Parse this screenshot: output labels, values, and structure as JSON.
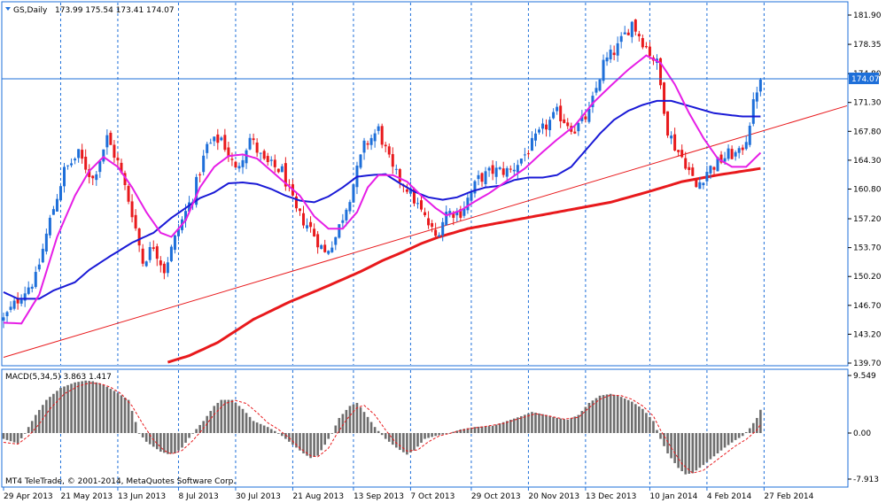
{
  "window": {
    "symbol_label": "GS,Daily",
    "ohlc_label": "173.99 175.54 173.41 174.07",
    "macd_label": "MACD(5,34,5) 3.863 1.417",
    "copyright": "MT4 TeleTrade, © 2001-2014, MetaQuotes Software Corp."
  },
  "colors": {
    "frame": "#1e6fd9",
    "bull_candle": "#1e6fd9",
    "bear_candle": "#e8191c",
    "ma_fast": "#e61ee6",
    "ma_mid": "#1a1ad6",
    "ma_slow": "#e8191c",
    "trendline": "#e8191c",
    "macd_hist": "#6e6e6e",
    "macd_signal": "#e8191c",
    "price_tag_bg": "#1e6fd9",
    "price_tag_text": "#ffffff"
  },
  "chart_data": [
    {
      "type": "candlestick",
      "title": "GS,Daily",
      "y_ticks": [
        "181.90",
        "178.35",
        "174.80",
        "171.30",
        "167.80",
        "164.30",
        "160.80",
        "157.20",
        "153.70",
        "150.20",
        "146.70",
        "143.20",
        "139.70"
      ],
      "ylim": [
        139.7,
        181.9
      ],
      "current_price": "174.07",
      "x_date_labels": [
        "29 Apr 2013",
        "21 May 2013",
        "13 Jun 2013",
        "8 Jul 2013",
        "30 Jul 2013",
        "21 Aug 2013",
        "13 Sep 2013",
        "7 Oct 2013",
        "29 Oct 2013",
        "20 Nov 2013",
        "13 Dec 2013",
        "10 Jan 2014",
        "4 Feb 2014",
        "27 Feb 2014"
      ],
      "close_anchors": [
        [
          0,
          145
        ],
        [
          5,
          148
        ],
        [
          9,
          150
        ],
        [
          13,
          157
        ],
        [
          17,
          163
        ],
        [
          21,
          165
        ],
        [
          25,
          162
        ],
        [
          29,
          167
        ],
        [
          32,
          164
        ],
        [
          36,
          158
        ],
        [
          39,
          152
        ],
        [
          42,
          154
        ],
        [
          45,
          151
        ],
        [
          49,
          156
        ],
        [
          53,
          160
        ],
        [
          57,
          166
        ],
        [
          61,
          167
        ],
        [
          65,
          163
        ],
        [
          69,
          167
        ],
        [
          73,
          164
        ],
        [
          78,
          163
        ],
        [
          82,
          158
        ],
        [
          86,
          156
        ],
        [
          90,
          153
        ],
        [
          93,
          155
        ],
        [
          97,
          160
        ],
        [
          101,
          166
        ],
        [
          105,
          168
        ],
        [
          109,
          163
        ],
        [
          113,
          161
        ],
        [
          117,
          158
        ],
        [
          121,
          155
        ],
        [
          124,
          158
        ],
        [
          128,
          158
        ],
        [
          133,
          162
        ],
        [
          137,
          163
        ],
        [
          142,
          163
        ],
        [
          146,
          165
        ],
        [
          151,
          168
        ],
        [
          155,
          170
        ],
        [
          160,
          168
        ],
        [
          164,
          170
        ],
        [
          168,
          176
        ],
        [
          172,
          178
        ],
        [
          176,
          181
        ],
        [
          180,
          178
        ],
        [
          183,
          176
        ],
        [
          186,
          168
        ],
        [
          188,
          166
        ],
        [
          191,
          164
        ],
        [
          194,
          161
        ],
        [
          197,
          163
        ],
        [
          200,
          164
        ],
        [
          203,
          165
        ],
        [
          206,
          165
        ],
        [
          208,
          167
        ],
        [
          210,
          171
        ],
        [
          212,
          175
        ]
      ],
      "ma_fast_anchors": [
        [
          0,
          144.6
        ],
        [
          5,
          144.5
        ],
        [
          10,
          148
        ],
        [
          15,
          155
        ],
        [
          20,
          160
        ],
        [
          24,
          163
        ],
        [
          28,
          164.7
        ],
        [
          32,
          163.5
        ],
        [
          36,
          161
        ],
        [
          40,
          158
        ],
        [
          44,
          155.5
        ],
        [
          47,
          155
        ],
        [
          51,
          157
        ],
        [
          55,
          161
        ],
        [
          59,
          163.5
        ],
        [
          63,
          164.8
        ],
        [
          67,
          165
        ],
        [
          71,
          164.5
        ],
        [
          75,
          163
        ],
        [
          79,
          161.5
        ],
        [
          83,
          160
        ],
        [
          87,
          157.5
        ],
        [
          91,
          156
        ],
        [
          95,
          156
        ],
        [
          99,
          158
        ],
        [
          102,
          161
        ],
        [
          105,
          162.5
        ],
        [
          109,
          162.5
        ],
        [
          113,
          161.7
        ],
        [
          117,
          160
        ],
        [
          121,
          158.5
        ],
        [
          124,
          157.6
        ],
        [
          128,
          158.2
        ],
        [
          132,
          159.3
        ],
        [
          136,
          160.3
        ],
        [
          141,
          161.8
        ],
        [
          146,
          163.3
        ],
        [
          151,
          165.3
        ],
        [
          155,
          166.8
        ],
        [
          160,
          168.5
        ],
        [
          165,
          171.2
        ],
        [
          170,
          173.3
        ],
        [
          175,
          175.3
        ],
        [
          180,
          177
        ],
        [
          184,
          176.1
        ],
        [
          188,
          173.5
        ],
        [
          192,
          170
        ],
        [
          196,
          167
        ],
        [
          200,
          164.5
        ],
        [
          204,
          163.5
        ],
        [
          208,
          163.5
        ],
        [
          212,
          165.2
        ]
      ],
      "ma_mid_anchors": [
        [
          0,
          148.3
        ],
        [
          4,
          147.5
        ],
        [
          10,
          147.5
        ],
        [
          14,
          148.5
        ],
        [
          20,
          149.5
        ],
        [
          24,
          151
        ],
        [
          30,
          152.7
        ],
        [
          36,
          154.3
        ],
        [
          42,
          155.5
        ],
        [
          47,
          157.3
        ],
        [
          51,
          158.5
        ],
        [
          55,
          159.7
        ],
        [
          59,
          160.4
        ],
        [
          63,
          161.5
        ],
        [
          67,
          161.6
        ],
        [
          71,
          161.4
        ],
        [
          75,
          160.8
        ],
        [
          79,
          160
        ],
        [
          83,
          159.4
        ],
        [
          87,
          159.2
        ],
        [
          91,
          159.9
        ],
        [
          95,
          161
        ],
        [
          99,
          162.3
        ],
        [
          103,
          162.5
        ],
        [
          107,
          162.6
        ],
        [
          111,
          161.5
        ],
        [
          115,
          160.5
        ],
        [
          119,
          159.8
        ],
        [
          123,
          159.5
        ],
        [
          127,
          159.8
        ],
        [
          131,
          160.5
        ],
        [
          135,
          161
        ],
        [
          139,
          161.2
        ],
        [
          143,
          161.9
        ],
        [
          147,
          162.2
        ],
        [
          151,
          162.2
        ],
        [
          155,
          162.5
        ],
        [
          159,
          163.5
        ],
        [
          163,
          165.5
        ],
        [
          167,
          167.5
        ],
        [
          171,
          169.2
        ],
        [
          175,
          170.3
        ],
        [
          179,
          171
        ],
        [
          183,
          171.5
        ],
        [
          187,
          171.5
        ],
        [
          191,
          171
        ],
        [
          195,
          170.5
        ],
        [
          199,
          170
        ],
        [
          203,
          169.8
        ],
        [
          207,
          169.6
        ],
        [
          212,
          169.6
        ]
      ],
      "ma_slow_anchors": [
        [
          46,
          139.8
        ],
        [
          52,
          140.6
        ],
        [
          60,
          142.2
        ],
        [
          70,
          145
        ],
        [
          80,
          147.1
        ],
        [
          90,
          148.9
        ],
        [
          100,
          150.8
        ],
        [
          106,
          152.1
        ],
        [
          112,
          153.2
        ],
        [
          117,
          154.2
        ],
        [
          122,
          155
        ],
        [
          130,
          156
        ],
        [
          140,
          156.8
        ],
        [
          150,
          157.6
        ],
        [
          160,
          158.4
        ],
        [
          170,
          159.2
        ],
        [
          180,
          160.4
        ],
        [
          190,
          161.7
        ],
        [
          200,
          162.5
        ],
        [
          212,
          163.3
        ]
      ],
      "trendline": {
        "from": [
          0,
          140.4
        ],
        "to": [
          237,
          171
        ]
      }
    },
    {
      "type": "bar",
      "title": "MACD(5,34,5)",
      "y_ticks": [
        "9.549",
        "0.00",
        "-7.913"
      ],
      "ylim": [
        -7.913,
        9.549
      ],
      "hist_anchors": [
        [
          0,
          -1
        ],
        [
          4,
          -1.8
        ],
        [
          6,
          0
        ],
        [
          9,
          3
        ],
        [
          12,
          5.5
        ],
        [
          16,
          7.5
        ],
        [
          20,
          8.4
        ],
        [
          23,
          8.7
        ],
        [
          25,
          8.6
        ],
        [
          28,
          8
        ],
        [
          31,
          7
        ],
        [
          35,
          5.5
        ],
        [
          38,
          0
        ],
        [
          40,
          -1.5
        ],
        [
          44,
          -3.2
        ],
        [
          46,
          -3.6
        ],
        [
          48,
          -3.5
        ],
        [
          50,
          -2.5
        ],
        [
          53,
          0
        ],
        [
          56,
          2
        ],
        [
          59,
          4.5
        ],
        [
          61,
          5.5
        ],
        [
          64,
          5.5
        ],
        [
          67,
          4
        ],
        [
          70,
          2
        ],
        [
          74,
          1
        ],
        [
          77,
          0
        ],
        [
          80,
          -1.5
        ],
        [
          84,
          -3.5
        ],
        [
          86,
          -4.3
        ],
        [
          88,
          -3.9
        ],
        [
          90,
          -2
        ],
        [
          92,
          0
        ],
        [
          94,
          2.5
        ],
        [
          97,
          4.5
        ],
        [
          99,
          5
        ],
        [
          101,
          3.5
        ],
        [
          104,
          1
        ],
        [
          107,
          -1
        ],
        [
          110,
          -2.5
        ],
        [
          113,
          -3.7
        ],
        [
          115,
          -3
        ],
        [
          118,
          -1
        ],
        [
          121,
          -0.5
        ],
        [
          125,
          0
        ],
        [
          128,
          0.6
        ],
        [
          132,
          1
        ],
        [
          137,
          1.2
        ],
        [
          141,
          2
        ],
        [
          145,
          2.8
        ],
        [
          148,
          3.5
        ],
        [
          152,
          3
        ],
        [
          155,
          2.5
        ],
        [
          158,
          2.2
        ],
        [
          161,
          3
        ],
        [
          164,
          5
        ],
        [
          167,
          6.2
        ],
        [
          170,
          6.5
        ],
        [
          173,
          6
        ],
        [
          176,
          5.2
        ],
        [
          179,
          4
        ],
        [
          182,
          2
        ],
        [
          184,
          -1
        ],
        [
          186,
          -3.5
        ],
        [
          189,
          -6
        ],
        [
          191,
          -7.1
        ],
        [
          193,
          -6.9
        ],
        [
          196,
          -5.5
        ],
        [
          199,
          -4
        ],
        [
          202,
          -2.5
        ],
        [
          205,
          -1.2
        ],
        [
          207,
          -0.5
        ],
        [
          209,
          0.8
        ],
        [
          211,
          2.5
        ],
        [
          212,
          3.86
        ]
      ],
      "signal_anchors": [
        [
          0,
          -1.6
        ],
        [
          4,
          -1.9
        ],
        [
          7,
          -0.5
        ],
        [
          10,
          1.5
        ],
        [
          13,
          4
        ],
        [
          17,
          6.5
        ],
        [
          21,
          7.8
        ],
        [
          24,
          8.3
        ],
        [
          27,
          8.2
        ],
        [
          30,
          7.6
        ],
        [
          33,
          6.5
        ],
        [
          36,
          4.5
        ],
        [
          39,
          1.5
        ],
        [
          42,
          -1.2
        ],
        [
          45,
          -3
        ],
        [
          47,
          -3.6
        ],
        [
          50,
          -3
        ],
        [
          53,
          -1.3
        ],
        [
          56,
          0.8
        ],
        [
          59,
          3.1
        ],
        [
          62,
          4.9
        ],
        [
          65,
          5.4
        ],
        [
          68,
          4.9
        ],
        [
          71,
          3.4
        ],
        [
          74,
          1.7
        ],
        [
          77,
          0.6
        ],
        [
          80,
          -0.8
        ],
        [
          83,
          -2.6
        ],
        [
          86,
          -3.9
        ],
        [
          88,
          -4.1
        ],
        [
          91,
          -2.6
        ],
        [
          93,
          -0.5
        ],
        [
          96,
          2.2
        ],
        [
          99,
          4.2
        ],
        [
          101,
          4.6
        ],
        [
          104,
          3
        ],
        [
          107,
          0.5
        ],
        [
          110,
          -1.7
        ],
        [
          113,
          -3.1
        ],
        [
          116,
          -2.9
        ],
        [
          119,
          -1.5
        ],
        [
          122,
          -0.5
        ],
        [
          126,
          0.1
        ],
        [
          130,
          0.7
        ],
        [
          135,
          1.1
        ],
        [
          140,
          1.6
        ],
        [
          145,
          2.5
        ],
        [
          149,
          3.2
        ],
        [
          153,
          2.8
        ],
        [
          157,
          2.3
        ],
        [
          161,
          2.6
        ],
        [
          164,
          4.2
        ],
        [
          167,
          5.6
        ],
        [
          170,
          6.3
        ],
        [
          173,
          6.2
        ],
        [
          176,
          5.6
        ],
        [
          179,
          4.5
        ],
        [
          182,
          2.8
        ],
        [
          184,
          0.5
        ],
        [
          187,
          -2.5
        ],
        [
          190,
          -5.3
        ],
        [
          193,
          -6.9
        ],
        [
          196,
          -6.4
        ],
        [
          199,
          -5
        ],
        [
          202,
          -3.6
        ],
        [
          205,
          -2.2
        ],
        [
          208,
          -1.1
        ],
        [
          211,
          0.5
        ],
        [
          212,
          1.42
        ]
      ]
    }
  ]
}
